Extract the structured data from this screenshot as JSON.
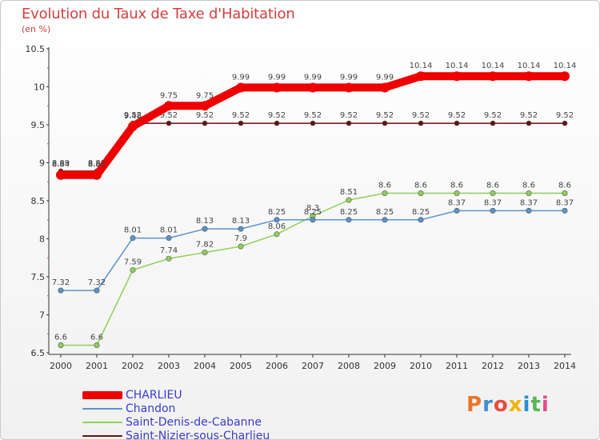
{
  "chart_data": {
    "type": "line",
    "title": "Evolution du Taux de Taxe d'Habitation",
    "ylabel": "(en %)",
    "x": [
      "2000",
      "2001",
      "2002",
      "2003",
      "2004",
      "2005",
      "2006",
      "2007",
      "2008",
      "2009",
      "2010",
      "2011",
      "2012",
      "2013",
      "2014"
    ],
    "ylim": [
      6.5,
      10.5
    ],
    "yticks": [
      "6.5",
      "7",
      "7.5",
      "8",
      "8.5",
      "9",
      "9.5",
      "10",
      "10.5"
    ],
    "grid": false,
    "legend_position": "bottom-left",
    "series": [
      {
        "name": "Saint-Nizier-sous-Charlieu",
        "color": "#6b1010",
        "values": [
          8.89,
          8.89,
          9.52,
          9.52,
          9.52,
          9.52,
          9.52,
          9.52,
          9.52,
          9.52,
          9.52,
          9.52,
          9.52,
          9.52,
          9.52
        ],
        "labels": [
          "8.89",
          "8.89",
          "9.52",
          "9.52",
          "9.52",
          "9.52",
          "9.52",
          "9.52",
          "9.52",
          "9.52",
          "9.52",
          "9.52",
          "9.52",
          "9.52",
          "9.52"
        ]
      },
      {
        "name": "Saint-Denis-de-Cabanne",
        "color": "#8fd05a",
        "values": [
          6.6,
          6.6,
          7.59,
          7.74,
          7.82,
          7.9,
          8.06,
          8.3,
          8.51,
          8.6,
          8.6,
          8.6,
          8.6,
          8.6,
          8.6
        ],
        "labels": [
          "6.6",
          "6.6",
          "7.59",
          "7.74",
          "7.82",
          "7.9",
          "8.06",
          "8.3",
          "8.51",
          "8.6",
          "8.6",
          "8.6",
          "8.6",
          "8.6",
          "8.6"
        ]
      },
      {
        "name": "Chandon",
        "color": "#5a93cc",
        "values": [
          7.32,
          7.32,
          8.01,
          8.01,
          8.13,
          8.13,
          8.25,
          8.25,
          8.25,
          8.25,
          8.25,
          8.37,
          8.37,
          8.37,
          8.37
        ],
        "labels": [
          "7.32",
          "7.32",
          "8.01",
          "8.01",
          "8.13",
          "8.13",
          "8.25",
          "8.25",
          "8.25",
          "8.25",
          "8.25",
          "8.37",
          "8.37",
          "8.37",
          "8.37"
        ]
      },
      {
        "name": "CHARLIEU",
        "color": "#ee0000",
        "values": [
          8.84,
          8.84,
          9.48,
          9.75,
          9.75,
          9.99,
          9.99,
          9.99,
          9.99,
          9.99,
          10.14,
          10.14,
          10.14,
          10.14,
          10.14
        ],
        "labels": [
          "8.84",
          "8.84",
          "9.48",
          "9.75",
          "9.75",
          "9.99",
          "9.99",
          "9.99",
          "9.99",
          "9.99",
          "10.14",
          "10.14",
          "10.14",
          "10.14",
          "10.14"
        ]
      }
    ],
    "legend": [
      "CHARLIEU",
      "Chandon",
      "Saint-Denis-de-Cabanne",
      "Saint-Nizier-sous-Charlieu"
    ]
  },
  "logo": {
    "text": "Proxiti",
    "colors": [
      "#e8762b",
      "#3f8fd2",
      "#e94b3c",
      "#f0b400",
      "#2a8fd0",
      "#5ab552",
      "#e84a8a"
    ]
  }
}
